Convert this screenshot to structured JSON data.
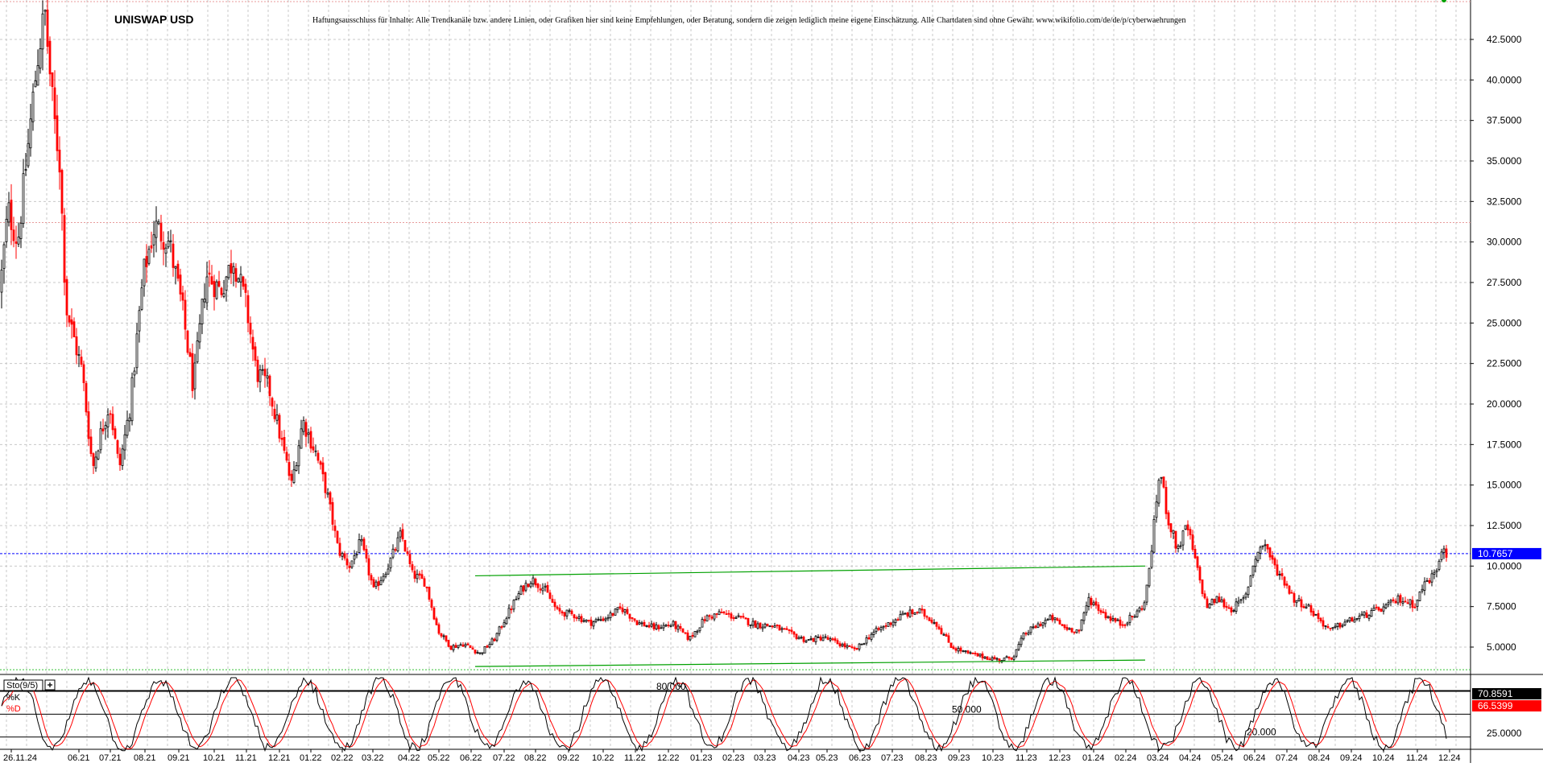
{
  "chart_data": {
    "type": "candlestick",
    "title": "UNISWAP USD",
    "disclaimer": "Haftungsausschluss für Inhalte: Alle Trendkanäle bzw. andere Linien, oder Grafiken hier sind keine Empfehlungen, oder Beratung, sondern die zeigen lediglich meine eigene Einschätzung. Alle Chartdaten sind ohne Gewähr. www.wikifolio.com/de/de/p/cyberwaehrungen",
    "ylim": [
      3.0,
      44.5
    ],
    "yticks": [
      5.0,
      7.5,
      10.0,
      12.5,
      15.0,
      17.5,
      20.0,
      22.5,
      25.0,
      27.5,
      30.0,
      32.5,
      35.0,
      37.5,
      40.0,
      42.5
    ],
    "ytick_labels": [
      "5.0000",
      "7.5000",
      "10.0000",
      "12.5000",
      "15.0000",
      "17.5000",
      "20.0000",
      "22.5000",
      "25.0000",
      "27.5000",
      "30.0000",
      "32.5000",
      "35.0000",
      "37.5000",
      "40.0000",
      "42.5000"
    ],
    "xtick_labels": [
      "26.11.24",
      "06.21",
      "07.21",
      "08.21",
      "09.21",
      "10.21",
      "11.21",
      "12.21",
      "01.22",
      "02.22",
      "03.22",
      "04.22",
      "05.22",
      "06.22",
      "07.22",
      "08.22",
      "09.22",
      "10.22",
      "11.22",
      "12.22",
      "01.23",
      "02.23",
      "03.23",
      "04.23",
      "05.23",
      "06.23",
      "07.23",
      "08.23",
      "09.23",
      "10.23",
      "11.23",
      "12.23",
      "01.24",
      "02.24",
      "03.24",
      "04.24",
      "05.24",
      "06.24",
      "07.24",
      "08.24",
      "09.24",
      "10.24",
      "11.24",
      "12.24"
    ],
    "grid": true,
    "up_color": "#000000",
    "down_color": "#ff0000",
    "price_path": [
      [
        0,
        27.0
      ],
      [
        10,
        32.0
      ],
      [
        22,
        30.0
      ],
      [
        35,
        36.0
      ],
      [
        48,
        42.0
      ],
      [
        56,
        44.0
      ],
      [
        66,
        38.0
      ],
      [
        74,
        35.0
      ],
      [
        82,
        26.0
      ],
      [
        92,
        24.0
      ],
      [
        102,
        22.0
      ],
      [
        115,
        16.0
      ],
      [
        124,
        18.0
      ],
      [
        136,
        20.0
      ],
      [
        148,
        16.0
      ],
      [
        162,
        20.0
      ],
      [
        178,
        28.0
      ],
      [
        192,
        31.0
      ],
      [
        210,
        30.0
      ],
      [
        226,
        26.0
      ],
      [
        240,
        21.0
      ],
      [
        256,
        28.0
      ],
      [
        274,
        27.0
      ],
      [
        290,
        29.0
      ],
      [
        306,
        26.0
      ],
      [
        318,
        22.0
      ],
      [
        334,
        21.0
      ],
      [
        348,
        18.0
      ],
      [
        362,
        15.0
      ],
      [
        376,
        19.0
      ],
      [
        392,
        17.0
      ],
      [
        406,
        14.5
      ],
      [
        420,
        11.0
      ],
      [
        434,
        10.0
      ],
      [
        448,
        11.5
      ],
      [
        464,
        8.5
      ],
      [
        482,
        10.0
      ],
      [
        498,
        12.0
      ],
      [
        512,
        9.5
      ],
      [
        528,
        9.0
      ],
      [
        544,
        6.0
      ],
      [
        560,
        5.0
      ],
      [
        576,
        5.2
      ],
      [
        596,
        4.6
      ],
      [
        614,
        5.5
      ],
      [
        632,
        7.2
      ],
      [
        648,
        8.6
      ],
      [
        660,
        9.2
      ],
      [
        676,
        8.6
      ],
      [
        692,
        7.2
      ],
      [
        712,
        7.0
      ],
      [
        732,
        6.5
      ],
      [
        752,
        6.8
      ],
      [
        772,
        7.4
      ],
      [
        792,
        6.5
      ],
      [
        812,
        6.2
      ],
      [
        836,
        6.4
      ],
      [
        856,
        5.5
      ],
      [
        876,
        6.8
      ],
      [
        896,
        7.1
      ],
      [
        916,
        6.8
      ],
      [
        938,
        6.4
      ],
      [
        960,
        6.3
      ],
      [
        982,
        5.8
      ],
      [
        1002,
        5.4
      ],
      [
        1022,
        5.6
      ],
      [
        1042,
        5.2
      ],
      [
        1062,
        4.8
      ],
      [
        1082,
        5.8
      ],
      [
        1102,
        6.4
      ],
      [
        1122,
        7.0
      ],
      [
        1142,
        7.2
      ],
      [
        1162,
        6.5
      ],
      [
        1182,
        5.0
      ],
      [
        1202,
        4.6
      ],
      [
        1222,
        4.4
      ],
      [
        1242,
        4.2
      ],
      [
        1258,
        4.4
      ],
      [
        1272,
        5.8
      ],
      [
        1290,
        6.4
      ],
      [
        1306,
        6.8
      ],
      [
        1322,
        6.2
      ],
      [
        1340,
        6.0
      ],
      [
        1352,
        8.0
      ],
      [
        1372,
        7.0
      ],
      [
        1392,
        6.4
      ],
      [
        1410,
        7.0
      ],
      [
        1422,
        7.8
      ],
      [
        1432,
        12.0
      ],
      [
        1440,
        16.0
      ],
      [
        1450,
        13.0
      ],
      [
        1462,
        11.0
      ],
      [
        1474,
        12.5
      ],
      [
        1488,
        9.5
      ],
      [
        1498,
        7.5
      ],
      [
        1512,
        8.0
      ],
      [
        1528,
        7.3
      ],
      [
        1546,
        8.0
      ],
      [
        1558,
        10.5
      ],
      [
        1570,
        11.5
      ],
      [
        1582,
        10.0
      ],
      [
        1596,
        9.0
      ],
      [
        1606,
        8.0
      ],
      [
        1624,
        7.5
      ],
      [
        1642,
        6.5
      ],
      [
        1652,
        6.0
      ],
      [
        1668,
        6.5
      ],
      [
        1686,
        6.8
      ],
      [
        1706,
        7.2
      ],
      [
        1722,
        7.5
      ],
      [
        1738,
        8.0
      ],
      [
        1756,
        7.6
      ],
      [
        1770,
        9.0
      ],
      [
        1782,
        9.5
      ],
      [
        1792,
        11.5
      ],
      [
        1796,
        10.8
      ]
    ],
    "reference_lines": [
      {
        "value": 31.2,
        "color": "#e89b9b",
        "style": "dotted"
      },
      {
        "value": 10.7657,
        "color": "#0000ff",
        "style": "dashed"
      },
      {
        "value": 3.6,
        "color": "#35c235",
        "style": "dotted"
      }
    ],
    "trendlines": [
      {
        "color": "#00a000",
        "from": [
          590,
          9.4
        ],
        "to": [
          1422,
          10.0
        ]
      },
      {
        "color": "#00a000",
        "from": [
          590,
          3.8
        ],
        "to": [
          1422,
          4.2
        ]
      }
    ],
    "last_price_label": "10.7657",
    "last_price_color": "#0000ff",
    "stochastic": {
      "name": "Sto(9/5)",
      "k_label": "%K",
      "d_label": "%D",
      "k_color": "#000000",
      "d_color": "#ff0000",
      "ylim": [
        0,
        100
      ],
      "levels": [
        {
          "value": 80,
          "label": "80.000"
        },
        {
          "value": 50,
          "label": "50.000"
        },
        {
          "value": 20,
          "label": "20.000"
        }
      ],
      "ytick_labels": [
        "25.0000"
      ],
      "ytick_values": [
        25
      ],
      "k_last": "70.8591",
      "d_last": "66.5399",
      "k_badge_color": "#000000",
      "d_badge_color": "#ff0000"
    }
  }
}
